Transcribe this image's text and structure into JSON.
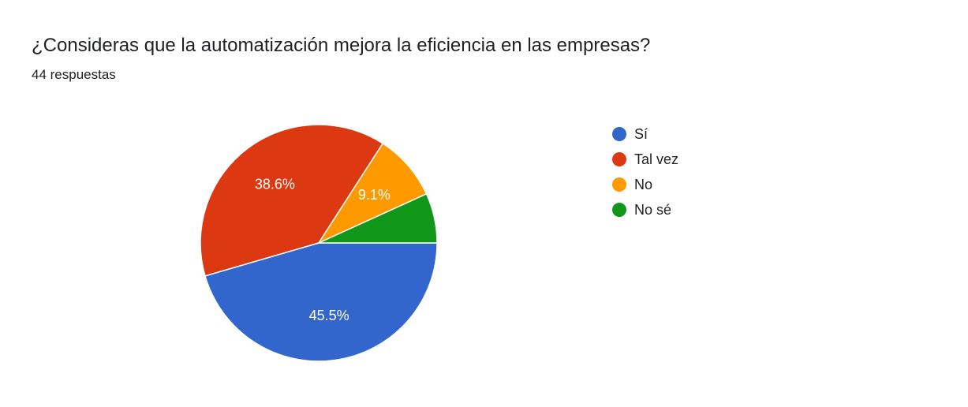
{
  "header": {
    "question": "¿Consideras que la automatización mejora la eficiencia en las empresas?",
    "responses": "44 respuestas"
  },
  "chart_data": {
    "type": "pie",
    "title": "¿Consideras que la automatización mejora la eficiencia en las empresas?",
    "categories": [
      "Sí",
      "Tal vez",
      "No",
      "No sé"
    ],
    "values": [
      45.5,
      38.6,
      9.1,
      6.8
    ],
    "data_labels": [
      "45.5%",
      "38.6%",
      "9.1%",
      ""
    ],
    "colors": [
      "#3366cc",
      "#dc3912",
      "#ff9900",
      "#109618"
    ],
    "legend_position": "right"
  }
}
